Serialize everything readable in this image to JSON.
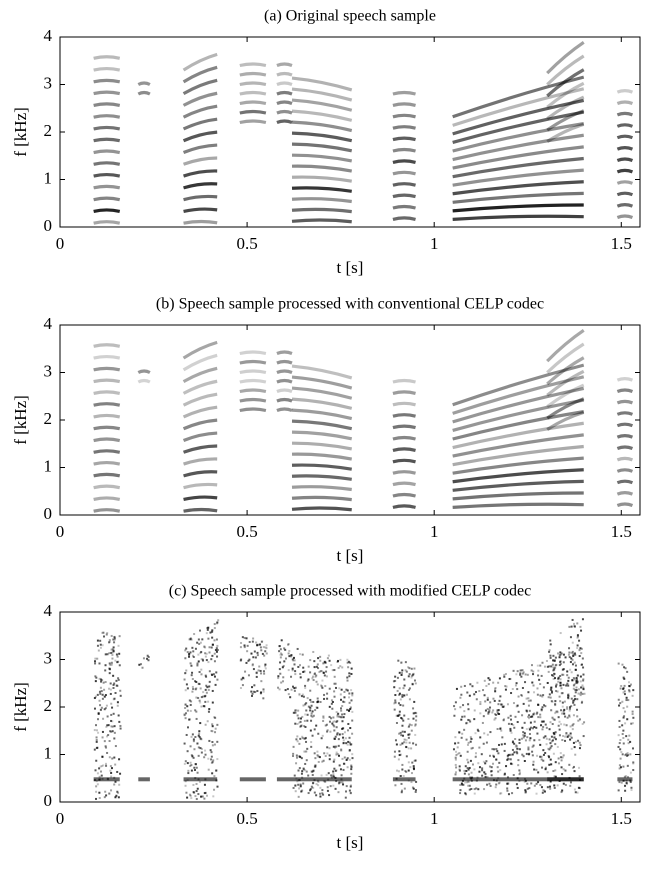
{
  "chart_data": [
    {
      "type": "spectrogram",
      "title": "(a) Original speech sample",
      "xlabel": "t [s]",
      "ylabel": "f [kHz]",
      "xlim": [
        0,
        1.55
      ],
      "ylim": [
        0,
        4
      ],
      "xticks": [
        0,
        0.5,
        1,
        1.5
      ],
      "yticks": [
        0,
        1,
        2,
        3,
        4
      ]
    },
    {
      "type": "spectrogram",
      "title": "(b) Speech sample processed with conventional CELP codec",
      "xlabel": "t [s]",
      "ylabel": "f [kHz]",
      "xlim": [
        0,
        1.55
      ],
      "ylim": [
        0,
        4
      ],
      "xticks": [
        0,
        0.5,
        1,
        1.5
      ],
      "yticks": [
        0,
        1,
        2,
        3,
        4
      ]
    },
    {
      "type": "spectrogram",
      "title": "(c) Speech sample processed with modified CELP codec",
      "xlabel": "t [s]",
      "ylabel": "f [kHz]",
      "xlim": [
        0,
        1.55
      ],
      "ylim": [
        0,
        4
      ],
      "xticks": [
        0,
        0.5,
        1,
        1.5
      ],
      "yticks": [
        0,
        1,
        2,
        3,
        4
      ]
    }
  ]
}
